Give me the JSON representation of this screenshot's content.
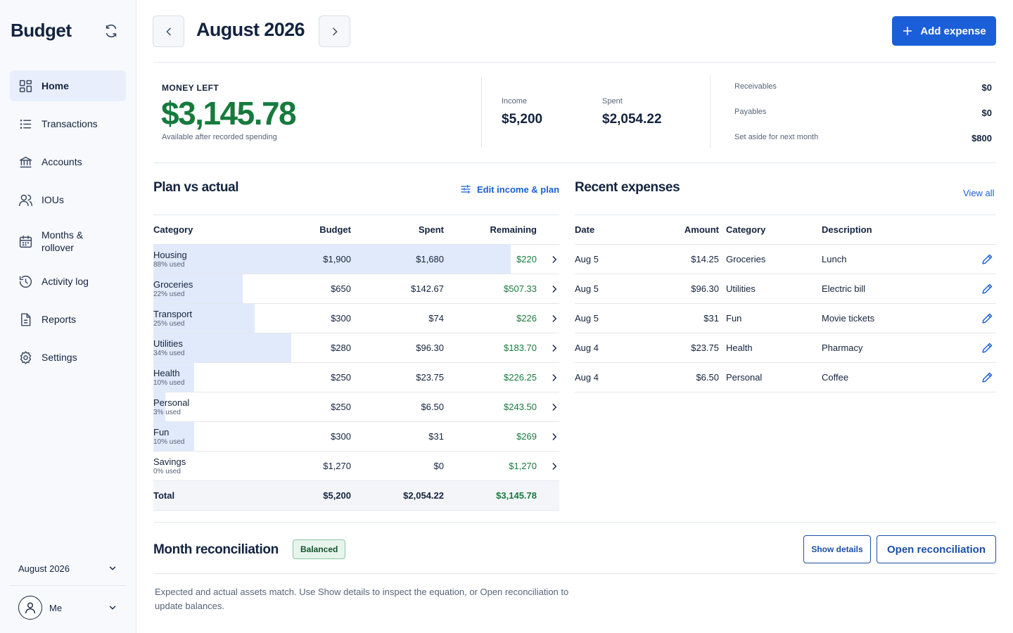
{
  "sidebar": {
    "brand": "Budget",
    "items": [
      {
        "label": "Home"
      },
      {
        "label": "Transactions"
      },
      {
        "label": "Accounts"
      },
      {
        "label": "IOUs"
      },
      {
        "label": "Months & rollover"
      },
      {
        "label": "Activity log"
      },
      {
        "label": "Reports"
      },
      {
        "label": "Settings"
      }
    ],
    "month_select": "August 2026",
    "user": "Me"
  },
  "header": {
    "title": "August 2026",
    "add_label": "Add expense"
  },
  "summary": {
    "money_left_label": "MONEY LEFT",
    "money_left_value": "$3,145.78",
    "money_left_sub": "Available after recorded spending",
    "income_label": "Income",
    "income_value": "$5,200",
    "spent_label": "Spent",
    "spent_value": "$2,054.22",
    "receivables_label": "Receivables",
    "receivables_value": "$0",
    "payables_label": "Payables",
    "payables_value": "$0",
    "set_aside_label": "Set aside for next month",
    "set_aside_value": "$800"
  },
  "plan": {
    "title": "Plan vs actual",
    "edit_label": "Edit income & plan",
    "headers": {
      "category": "Category",
      "budget": "Budget",
      "spent": "Spent",
      "remaining": "Remaining"
    },
    "rows": [
      {
        "category": "Housing",
        "used": "88% used",
        "pct": 88,
        "budget": "$1,900",
        "spent": "$1,680",
        "remaining": "$220"
      },
      {
        "category": "Groceries",
        "used": "22% used",
        "pct": 22,
        "budget": "$650",
        "spent": "$142.67",
        "remaining": "$507.33"
      },
      {
        "category": "Transport",
        "used": "25% used",
        "pct": 25,
        "budget": "$300",
        "spent": "$74",
        "remaining": "$226"
      },
      {
        "category": "Utilities",
        "used": "34% used",
        "pct": 34,
        "budget": "$280",
        "spent": "$96.30",
        "remaining": "$183.70"
      },
      {
        "category": "Health",
        "used": "10% used",
        "pct": 10,
        "budget": "$250",
        "spent": "$23.75",
        "remaining": "$226.25"
      },
      {
        "category": "Personal",
        "used": "3% used",
        "pct": 3,
        "budget": "$250",
        "spent": "$6.50",
        "remaining": "$243.50"
      },
      {
        "category": "Fun",
        "used": "10% used",
        "pct": 10,
        "budget": "$300",
        "spent": "$31",
        "remaining": "$269"
      },
      {
        "category": "Savings",
        "used": "0% used",
        "pct": 0,
        "budget": "$1,270",
        "spent": "$0",
        "remaining": "$1,270"
      }
    ],
    "total": {
      "label": "Total",
      "budget": "$5,200",
      "spent": "$2,054.22",
      "remaining": "$3,145.78"
    }
  },
  "recent": {
    "title": "Recent expenses",
    "view_all": "View all",
    "headers": {
      "date": "Date",
      "amount": "Amount",
      "category": "Category",
      "description": "Description"
    },
    "rows": [
      {
        "date": "Aug 5",
        "amount": "$14.25",
        "category": "Groceries",
        "description": "Lunch"
      },
      {
        "date": "Aug 5",
        "amount": "$96.30",
        "category": "Utilities",
        "description": "Electric bill"
      },
      {
        "date": "Aug 5",
        "amount": "$31",
        "category": "Fun",
        "description": "Movie tickets"
      },
      {
        "date": "Aug 4",
        "amount": "$23.75",
        "category": "Health",
        "description": "Pharmacy"
      },
      {
        "date": "Aug 4",
        "amount": "$6.50",
        "category": "Personal",
        "description": "Coffee"
      }
    ]
  },
  "reconciliation": {
    "title": "Month reconciliation",
    "badge": "Balanced",
    "show_details": "Show details",
    "open_label": "Open reconciliation",
    "note": "Expected and actual assets match. Use Show details to inspect the equation, or Open reconciliation to update balances."
  },
  "colors": {
    "accent": "#1b5fd8",
    "positive": "#177a3d",
    "bar_fill": "#e1eafa"
  }
}
